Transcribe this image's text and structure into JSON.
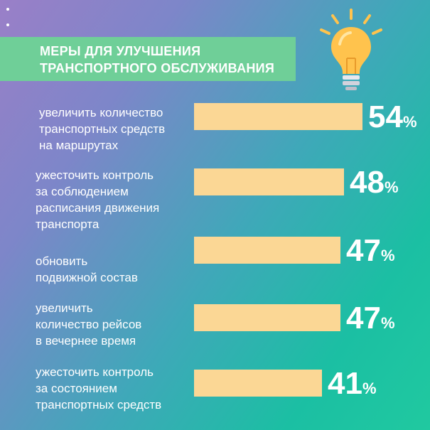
{
  "title": {
    "line1": "МЕРЫ ДЛЯ УЛУЧШЕНИЯ",
    "line2": "ТРАНСПОРТНОГО ОБСЛУЖИВАНИЯ"
  },
  "icon": "lightbulb-icon",
  "colors": {
    "bar": "#fbd795",
    "title_bg": "#6fcf98",
    "bulb": "#ffc34d"
  },
  "chart_data": {
    "type": "bar",
    "orientation": "horizontal",
    "categories": [
      "увеличить количество\nтранспортных средств\nна маршрутах",
      "ужесточить контроль\nза соблюдением\nрасписания движения\nтранспорта",
      "обновить\nподвижной состав",
      "увеличить\nколичество рейсов\nв вечернее время",
      "ужесточить контроль\nза состоянием\nтранспортных средств"
    ],
    "values": [
      54,
      48,
      47,
      47,
      41
    ],
    "value_labels": [
      "54",
      "48",
      "47",
      "47",
      "41"
    ],
    "unit": "%"
  }
}
